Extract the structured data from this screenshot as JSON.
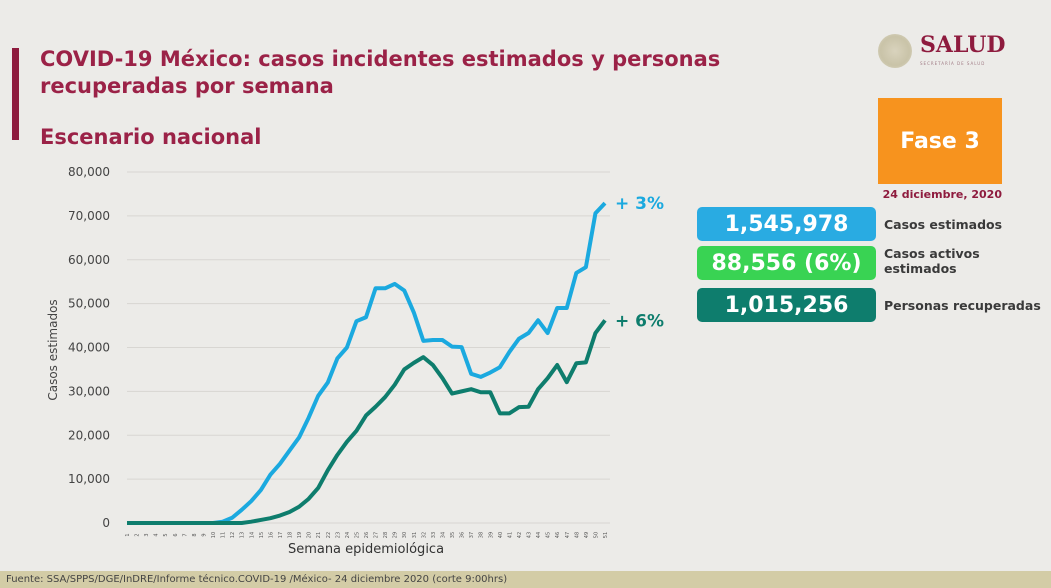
{
  "header": {
    "title": "COVID-19 México: casos incidentes estimados y personas recuperadas por semana",
    "subtitle": "Escenario nacional",
    "logo": {
      "word": "SALUD",
      "sub": "SECRETARÍA DE SALUD"
    }
  },
  "panel": {
    "phase": "Fase 3",
    "date": "24 diciembre, 2020",
    "stats": [
      {
        "value": "1,545,978",
        "label": "Casos estimados",
        "color": "#29abe2"
      },
      {
        "value": "88,556 (6%)",
        "label": "Casos activos estimados",
        "color": "#39d353"
      },
      {
        "value": "1,015,256",
        "label": "Personas recuperadas",
        "color": "#0e7d6d"
      }
    ]
  },
  "footer": {
    "source": "Fuente: SSA/SPPS/DGE/InDRE/Informe técnico.COVID-19 /México- 24 diciembre 2020 (corte 9:00hrs)"
  },
  "chart_data": {
    "type": "line",
    "xlabel": "Semana epidemiológica",
    "ylabel": "Casos estimados",
    "ylim": [
      0,
      80000
    ],
    "yticks": [
      "0",
      "10,000",
      "20,000",
      "30,000",
      "40,000",
      "50,000",
      "60,000",
      "70,000",
      "80,000"
    ],
    "ytick_values": [
      0,
      10000,
      20000,
      30000,
      40000,
      50000,
      60000,
      70000,
      80000
    ],
    "grid": true,
    "x": [
      1,
      2,
      3,
      4,
      5,
      6,
      7,
      8,
      9,
      10,
      11,
      12,
      13,
      14,
      15,
      16,
      17,
      18,
      19,
      20,
      21,
      22,
      23,
      24,
      25,
      26,
      27,
      28,
      29,
      30,
      31,
      32,
      33,
      34,
      35,
      36,
      37,
      38,
      39,
      40,
      41,
      42,
      43,
      44,
      45,
      46,
      47,
      48,
      49,
      50,
      51
    ],
    "series": [
      {
        "color": "#1ba9df",
        "end_label": "+ 3%",
        "values": [
          0,
          0,
          0,
          0,
          0,
          0,
          0,
          0,
          0,
          0,
          300,
          1200,
          3000,
          5000,
          7500,
          11000,
          13500,
          16500,
          19500,
          24000,
          29000,
          32000,
          37500,
          40000,
          46000,
          46900,
          53500,
          53500,
          54500,
          53000,
          48000,
          41500,
          41700,
          41700,
          40200,
          40100,
          34000,
          33300,
          34300,
          35500,
          39000,
          42000,
          43300,
          46200,
          43300,
          49000,
          49000,
          57000,
          58300,
          70600,
          72900
        ]
      },
      {
        "color": "#0e7d6d",
        "end_label": "+ 6%",
        "values": [
          0,
          0,
          0,
          0,
          0,
          0,
          0,
          0,
          0,
          0,
          0,
          0,
          0,
          300,
          700,
          1100,
          1700,
          2500,
          3700,
          5500,
          8000,
          12000,
          15500,
          18500,
          21000,
          24500,
          26500,
          28700,
          31500,
          35000,
          36500,
          37800,
          36000,
          33000,
          29500,
          30000,
          30500,
          29800,
          29800,
          25000,
          25000,
          26400,
          26500,
          30500,
          33000,
          36000,
          32100,
          36400,
          36600,
          43300,
          46200
        ]
      }
    ]
  }
}
